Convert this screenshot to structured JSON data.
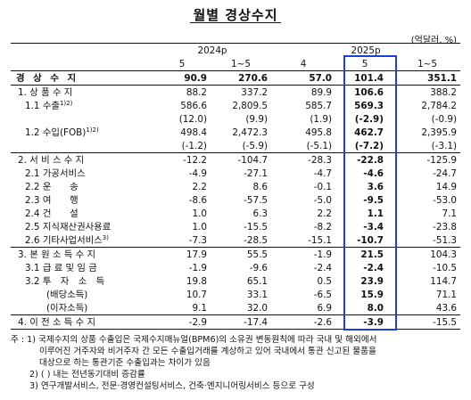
{
  "title": "월별 경상수지",
  "unit": "(억달러, %)",
  "years": [
    "2024p",
    "2025p"
  ],
  "months": [
    "5",
    "1~5",
    "4",
    "5",
    "1~5"
  ],
  "rows": [
    {
      "label": "경 상 수 지",
      "sup": "",
      "values": [
        "90.9",
        "270.6",
        "57.0",
        "101.4",
        "351.1"
      ],
      "bold": true,
      "indent": 0
    },
    {
      "label": "1. 상 품 수 지",
      "sup": "",
      "values": [
        "88.2",
        "337.2",
        "89.9",
        "106.6",
        "388.2"
      ],
      "bold": false,
      "indent": 1
    },
    {
      "label": "1.1 수출",
      "sup": "1)2)",
      "values": [
        "586.6",
        "2,809.5",
        "585.7",
        "569.3",
        "2,784.2"
      ],
      "bold": false,
      "indent": 2
    },
    {
      "label": "",
      "sup": "",
      "values": [
        "(12.0)",
        "(9.9)",
        "(1.9)",
        "(-2.9)",
        "(-0.9)"
      ],
      "bold": false,
      "indent": 2
    },
    {
      "label": "1.2 수입(FOB)",
      "sup": "1)2)",
      "values": [
        "498.4",
        "2,472.3",
        "495.8",
        "462.7",
        "2,395.9"
      ],
      "bold": false,
      "indent": 2
    },
    {
      "label": "",
      "sup": "",
      "values": [
        "(-1.2)",
        "(-5.9)",
        "(-5.1)",
        "(-7.2)",
        "(-3.1)"
      ],
      "bold": false,
      "indent": 2
    },
    {
      "label": "2. 서 비 스 수 지",
      "sup": "",
      "values": [
        "-12.2",
        "-104.7",
        "-28.3",
        "-22.8",
        "-125.9"
      ],
      "bold": false,
      "indent": 1
    },
    {
      "label": "2.1 가공서비스",
      "sup": "",
      "values": [
        "-4.9",
        "-27.1",
        "-4.7",
        "-4.6",
        "-24.7"
      ],
      "bold": false,
      "indent": 2
    },
    {
      "label": "2.2 운　　송",
      "sup": "",
      "values": [
        "2.2",
        "8.6",
        "-0.1",
        "3.6",
        "14.9"
      ],
      "bold": false,
      "indent": 2
    },
    {
      "label": "2.3 여　　행",
      "sup": "",
      "values": [
        "-8.6",
        "-57.5",
        "-5.0",
        "-9.5",
        "-53.0"
      ],
      "bold": false,
      "indent": 2
    },
    {
      "label": "2.4 건　　설",
      "sup": "",
      "values": [
        "1.0",
        "6.3",
        "2.2",
        "1.1",
        "7.1"
      ],
      "bold": false,
      "indent": 2
    },
    {
      "label": "2.5 지식재산권사용료",
      "sup": "",
      "values": [
        "1.0",
        "-15.5",
        "-8.2",
        "-3.4",
        "-23.8"
      ],
      "bold": false,
      "indent": 2
    },
    {
      "label": "2.6 기타사업서비스",
      "sup": "3)",
      "values": [
        "-7.3",
        "-28.5",
        "-15.1",
        "-10.7",
        "-51.3"
      ],
      "bold": false,
      "indent": 2
    },
    {
      "label": "3. 본 원 소 득 수 지",
      "sup": "",
      "values": [
        "17.9",
        "55.5",
        "-1.9",
        "21.5",
        "104.3"
      ],
      "bold": false,
      "indent": 1
    },
    {
      "label": "3.1 급 료 및 임 금",
      "sup": "",
      "values": [
        "-1.9",
        "-9.6",
        "-2.4",
        "-2.4",
        "-10.5"
      ],
      "bold": false,
      "indent": 2
    },
    {
      "label": "3.2 투　자　소　득",
      "sup": "",
      "values": [
        "19.8",
        "65.1",
        "0.5",
        "23.9",
        "114.7"
      ],
      "bold": false,
      "indent": 2
    },
    {
      "label": "(배당소득)",
      "sup": "",
      "values": [
        "10.7",
        "33.1",
        "-6.5",
        "15.9",
        "71.1"
      ],
      "bold": false,
      "indent": 3
    },
    {
      "label": "(이자소득)",
      "sup": "",
      "values": [
        "9.1",
        "32.0",
        "6.9",
        "8.0",
        "43.6"
      ],
      "bold": false,
      "indent": 3
    },
    {
      "label": "4. 이 전 소 득 수 지",
      "sup": "",
      "values": [
        "-2.9",
        "-17.4",
        "-2.6",
        "-3.9",
        "-15.5"
      ],
      "bold": false,
      "indent": 1
    }
  ],
  "notes": [
    "주 : 1) 국제수지의 상품 수출입은 국제수지매뉴얼(BPM6)의 소유권 변동원칙에 따라 국내 및 해외에서",
    "이루어진 거주자와 비거주자 간 모든 수출입거래를 계상하고 있어 국내에서 통관 신고된 물품을",
    "대상으로 하는 통관기준 수출입과는 차이가 있음",
    "2) ( ) 내는 전년동기대비 증감률",
    "3) 연구개발서비스, 전문·경영컨설팅서비스, 건축·엔지니어링서비스 등으로 구성"
  ]
}
